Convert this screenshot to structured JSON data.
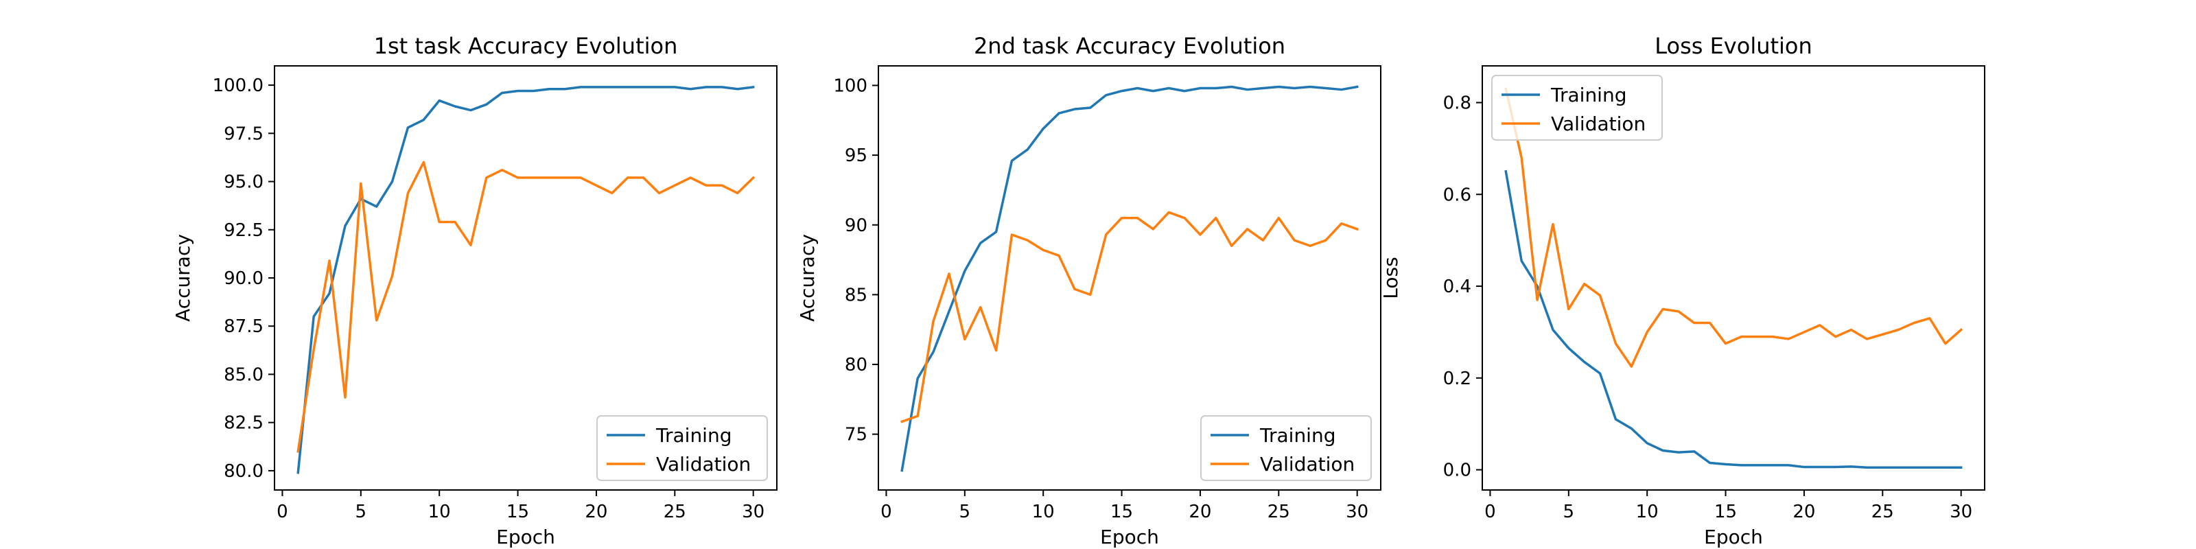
{
  "colors": {
    "training": "#1f77b4",
    "validation": "#ff7f0e"
  },
  "chart_data": [
    {
      "type": "line",
      "title": "1st task Accuracy Evolution",
      "xlabel": "Epoch",
      "ylabel": "Accuracy",
      "xlim": [
        -0.5,
        31.5
      ],
      "ylim": [
        79.0,
        101.0
      ],
      "xticks": [
        0,
        5,
        10,
        15,
        20,
        25,
        30
      ],
      "xtick_labels": [
        "0",
        "5",
        "10",
        "15",
        "20",
        "25",
        "30"
      ],
      "yticks": [
        80.0,
        82.5,
        85.0,
        87.5,
        90.0,
        92.5,
        95.0,
        97.5,
        100.0
      ],
      "ytick_labels": [
        "80.0",
        "82.5",
        "85.0",
        "87.5",
        "90.0",
        "92.5",
        "95.0",
        "97.5",
        "100.0"
      ],
      "legend_position": "lower-right",
      "x": [
        1,
        2,
        3,
        4,
        5,
        6,
        7,
        8,
        9,
        10,
        11,
        12,
        13,
        14,
        15,
        16,
        17,
        18,
        19,
        20,
        21,
        22,
        23,
        24,
        25,
        26,
        27,
        28,
        29,
        30
      ],
      "series": [
        {
          "name": "Training",
          "values": [
            79.9,
            88.0,
            89.2,
            92.7,
            94.1,
            93.7,
            95.0,
            97.8,
            98.2,
            99.2,
            98.9,
            98.7,
            99.0,
            99.6,
            99.7,
            99.7,
            99.8,
            99.8,
            99.9,
            99.9,
            99.9,
            99.9,
            99.9,
            99.9,
            99.9,
            99.8,
            99.9,
            99.9,
            99.8,
            99.9
          ]
        },
        {
          "name": "Validation",
          "values": [
            81.0,
            86.3,
            90.9,
            83.8,
            94.9,
            87.8,
            90.1,
            94.4,
            96.0,
            92.9,
            92.9,
            91.7,
            95.2,
            95.6,
            95.2,
            95.2,
            95.2,
            95.2,
            95.2,
            94.8,
            94.4,
            95.2,
            95.2,
            94.4,
            94.8,
            95.2,
            94.8,
            94.8,
            94.4,
            95.2
          ]
        }
      ]
    },
    {
      "type": "line",
      "title": "2nd task Accuracy Evolution",
      "xlabel": "Epoch",
      "ylabel": "Accuracy",
      "xlim": [
        -0.5,
        31.5
      ],
      "ylim": [
        71.0,
        101.4
      ],
      "xticks": [
        0,
        5,
        10,
        15,
        20,
        25,
        30
      ],
      "xtick_labels": [
        "0",
        "5",
        "10",
        "15",
        "20",
        "25",
        "30"
      ],
      "yticks": [
        75,
        80,
        85,
        90,
        95,
        100
      ],
      "ytick_labels": [
        "75",
        "80",
        "85",
        "90",
        "95",
        "100"
      ],
      "legend_position": "lower-right",
      "x": [
        1,
        2,
        3,
        4,
        5,
        6,
        7,
        8,
        9,
        10,
        11,
        12,
        13,
        14,
        15,
        16,
        17,
        18,
        19,
        20,
        21,
        22,
        23,
        24,
        25,
        26,
        27,
        28,
        29,
        30
      ],
      "series": [
        {
          "name": "Training",
          "values": [
            72.4,
            79.0,
            80.9,
            83.8,
            86.7,
            88.7,
            89.5,
            94.6,
            95.4,
            96.9,
            98.0,
            98.3,
            98.4,
            99.3,
            99.6,
            99.8,
            99.6,
            99.8,
            99.6,
            99.8,
            99.8,
            99.9,
            99.7,
            99.8,
            99.9,
            99.8,
            99.9,
            99.8,
            99.7,
            99.9
          ]
        },
        {
          "name": "Validation",
          "values": [
            75.9,
            76.3,
            83.1,
            86.5,
            81.8,
            84.1,
            81.0,
            89.3,
            88.9,
            88.2,
            87.8,
            85.4,
            85.0,
            89.3,
            90.5,
            90.5,
            89.7,
            90.9,
            90.5,
            89.3,
            90.5,
            88.5,
            89.7,
            88.9,
            90.5,
            88.9,
            88.5,
            88.9,
            90.1,
            89.7
          ]
        }
      ]
    },
    {
      "type": "line",
      "title": "Loss Evolution",
      "xlabel": "Epoch",
      "ylabel": "Loss",
      "xlim": [
        -0.5,
        31.5
      ],
      "ylim": [
        -0.044,
        0.88
      ],
      "xticks": [
        0,
        5,
        10,
        15,
        20,
        25,
        30
      ],
      "xtick_labels": [
        "0",
        "5",
        "10",
        "15",
        "20",
        "25",
        "30"
      ],
      "yticks": [
        0.0,
        0.2,
        0.4,
        0.6,
        0.8
      ],
      "ytick_labels": [
        "0.0",
        "0.2",
        "0.4",
        "0.6",
        "0.8"
      ],
      "legend_position": "upper-left",
      "x": [
        1,
        2,
        3,
        4,
        5,
        6,
        7,
        8,
        9,
        10,
        11,
        12,
        13,
        14,
        15,
        16,
        17,
        18,
        19,
        20,
        21,
        22,
        23,
        24,
        25,
        26,
        27,
        28,
        29,
        30
      ],
      "series": [
        {
          "name": "Training",
          "values": [
            0.65,
            0.455,
            0.4,
            0.305,
            0.265,
            0.235,
            0.21,
            0.11,
            0.09,
            0.058,
            0.042,
            0.038,
            0.04,
            0.015,
            0.012,
            0.01,
            0.01,
            0.01,
            0.01,
            0.006,
            0.006,
            0.006,
            0.007,
            0.005,
            0.005,
            0.005,
            0.005,
            0.005,
            0.005,
            0.005
          ]
        },
        {
          "name": "Validation",
          "values": [
            0.83,
            0.68,
            0.37,
            0.535,
            0.35,
            0.405,
            0.38,
            0.275,
            0.225,
            0.3,
            0.35,
            0.345,
            0.32,
            0.32,
            0.275,
            0.29,
            0.29,
            0.29,
            0.285,
            0.3,
            0.315,
            0.29,
            0.305,
            0.285,
            0.295,
            0.305,
            0.32,
            0.33,
            0.275,
            0.305
          ]
        }
      ]
    }
  ]
}
